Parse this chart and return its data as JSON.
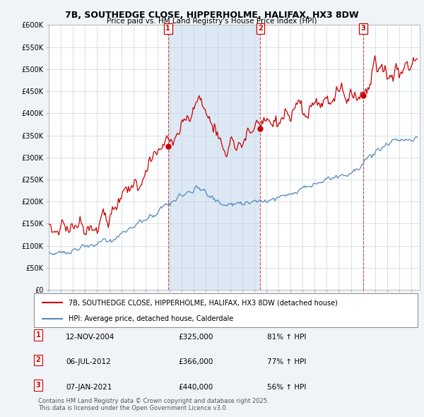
{
  "title": "7B, SOUTHEDGE CLOSE, HIPPERHOLME, HALIFAX, HX3 8DW",
  "subtitle": "Price paid vs. HM Land Registry's House Price Index (HPI)",
  "ylim": [
    0,
    600000
  ],
  "yticks": [
    0,
    50000,
    100000,
    150000,
    200000,
    250000,
    300000,
    350000,
    400000,
    450000,
    500000,
    550000,
    600000
  ],
  "ytick_labels": [
    "£0",
    "£50K",
    "£100K",
    "£150K",
    "£200K",
    "£250K",
    "£300K",
    "£350K",
    "£400K",
    "£450K",
    "£500K",
    "£550K",
    "£600K"
  ],
  "house_color": "#cc0000",
  "hpi_color": "#5588bb",
  "bg_color": "#f0f4f8",
  "plot_bg_color": "#ffffff",
  "shade_color": "#dce9f5",
  "grid_color": "#c8d4e0",
  "legend_house": "7B, SOUTHEDGE CLOSE, HIPPERHOLME, HALIFAX, HX3 8DW (detached house)",
  "legend_hpi": "HPI: Average price, detached house, Calderdale",
  "transactions": [
    {
      "num": 1,
      "date": "12-NOV-2004",
      "price": 325000,
      "year": 2004.87,
      "pct": "81%",
      "dir": "↑"
    },
    {
      "num": 2,
      "date": "06-JUL-2012",
      "price": 366000,
      "year": 2012.51,
      "pct": "77%",
      "dir": "↑"
    },
    {
      "num": 3,
      "date": "07-JAN-2021",
      "price": 440000,
      "year": 2021.02,
      "pct": "56%",
      "dir": "↑"
    }
  ],
  "footer": "Contains HM Land Registry data © Crown copyright and database right 2025.\nThis data is licensed under the Open Government Licence v3.0."
}
